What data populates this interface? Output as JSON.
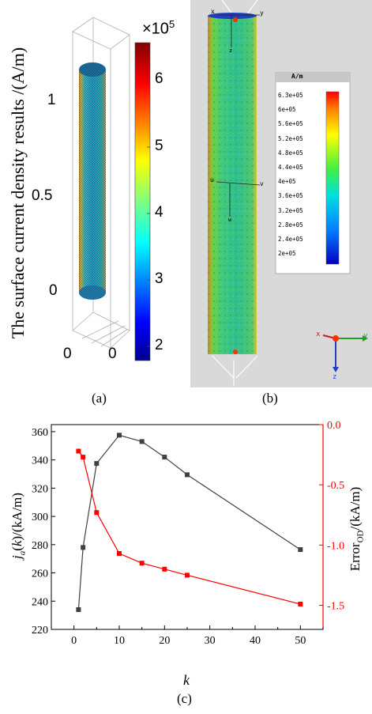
{
  "panel_a": {
    "ylabel": "The surface current density results /(A/m)",
    "axis_ticks": [
      "1",
      "0.5",
      "0"
    ],
    "bottom_ticks": [
      "0",
      "0"
    ],
    "colorbar_exponent": "×10",
    "colorbar_exponent_power": "5",
    "colorbar_ticks": [
      "6",
      "5",
      "4",
      "3",
      "2"
    ],
    "caption": "(a)"
  },
  "panel_b": {
    "legend_title": "A/m",
    "legend_values": [
      "6.3e+05",
      "6e+05",
      "5.6e+05",
      "5.2e+05",
      "4.8e+05",
      "4.4e+05",
      "4e+05",
      "3.6e+05",
      "3.2e+05",
      "2.8e+05",
      "2.4e+05",
      "2e+05"
    ],
    "axis_labels_top": [
      "x",
      "y",
      "z"
    ],
    "axis_labels_mid": [
      "u",
      "v",
      "w"
    ],
    "axis_labels_triad": [
      "x",
      "y",
      "z"
    ],
    "caption": "(b)"
  },
  "panel_c": {
    "caption": "(c)",
    "ylabel_left": "j_a(k)/(kA/m)",
    "ylabel_right": "Error_OD/(kA/m)",
    "xlabel": "k"
  },
  "chart_data": {
    "type": "line",
    "x": [
      1,
      2,
      5,
      10,
      15,
      20,
      25,
      50
    ],
    "xlim": [
      -5,
      55
    ],
    "xticks": [
      0,
      10,
      20,
      30,
      40,
      50
    ],
    "ylim_left": [
      220,
      365
    ],
    "yticks_left": [
      220,
      240,
      260,
      280,
      300,
      320,
      340,
      360
    ],
    "ylim_right": [
      -1.7,
      0.0
    ],
    "yticks_right": [
      0.0,
      -0.5,
      -1.0,
      -1.5
    ],
    "tick_labels_right": [
      "0.0",
      "-0.5",
      "-1.0",
      "-1.5"
    ],
    "series": [
      {
        "axis": "left",
        "color": "#404040",
        "values": [
          234,
          278,
          337.5,
          357.5,
          353,
          342,
          329.5,
          276.5
        ]
      },
      {
        "axis": "right",
        "color": "#ff0000",
        "values": [
          -0.22,
          -0.27,
          -0.73,
          -1.07,
          -1.15,
          -1.2,
          -1.25,
          -1.49
        ]
      }
    ]
  },
  "colors": {
    "black_series": "#404040",
    "red_series": "#ff0000",
    "panel_b_bg": "#d9d9d9"
  }
}
